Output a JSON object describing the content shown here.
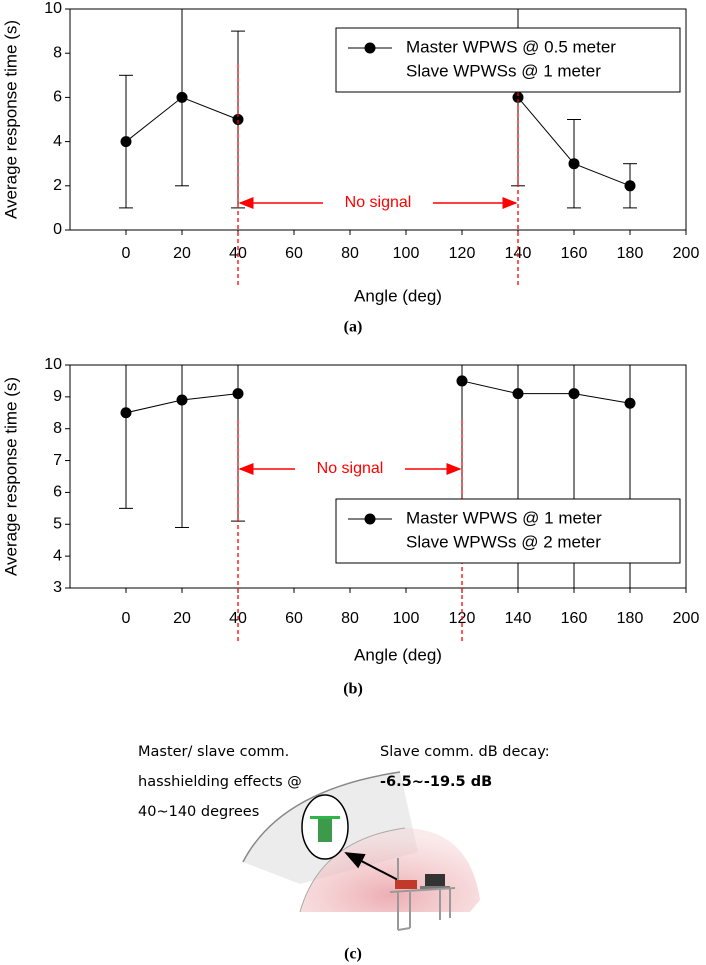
{
  "chart_data": [
    {
      "type": "line",
      "xlabel": "Angle (deg)",
      "ylabel": "Average response time (s)",
      "x": [
        0,
        20,
        40,
        60,
        80,
        100,
        120,
        140,
        160,
        180
      ],
      "series": [
        {
          "name": "Master WPWS @ 0.5 meter",
          "color": "#000000",
          "values": [
            4,
            6,
            5,
            null,
            null,
            null,
            null,
            6,
            3,
            2
          ],
          "errors": [
            3,
            4,
            4,
            null,
            null,
            null,
            null,
            4,
            2,
            1
          ]
        }
      ],
      "legend_text": "Slave WPWSs @  1 meter",
      "legend": "upper right",
      "xlim": [
        -20,
        200
      ],
      "xticks": [
        0,
        20,
        40,
        60,
        80,
        100,
        120,
        140,
        160,
        180,
        200
      ],
      "ylim": [
        0,
        10
      ],
      "yticks": [
        0,
        2,
        4,
        6,
        8,
        10
      ],
      "reference_lines": [
        40,
        140
      ],
      "reference_color": "#ff0000",
      "annotation": "No signal"
    },
    {
      "type": "line",
      "xlabel": "Angle (deg)",
      "ylabel": "Average response time (s)",
      "x": [
        0,
        20,
        40,
        60,
        80,
        100,
        120,
        140,
        160,
        180
      ],
      "series": [
        {
          "name": "Master WPWS @ 1 meter",
          "color": "#000000",
          "values": [
            8.5,
            8.9,
            9.1,
            null,
            null,
            null,
            9.5,
            9.1,
            9.1,
            8.8
          ],
          "errors": [
            3,
            4,
            4,
            null,
            null,
            null,
            4,
            6.5,
            6.5,
            6.5
          ]
        }
      ],
      "legend_text": "Slave WPWSs @  2 meter",
      "legend": "lower right",
      "xlim": [
        -20,
        200
      ],
      "xticks": [
        0,
        20,
        40,
        60,
        80,
        100,
        120,
        140,
        160,
        180,
        200
      ],
      "ylim": [
        3,
        10
      ],
      "yticks": [
        3,
        4,
        5,
        6,
        7,
        8,
        9,
        10
      ],
      "reference_lines": [
        40,
        120
      ],
      "reference_color": "#ff0000",
      "annotation": "No signal"
    }
  ],
  "panel_labels": [
    "(a)",
    "(b)",
    "(c)"
  ],
  "panel_c": {
    "left_text": [
      "Master/ slave comm.",
      "hasshielding effects @",
      "40~140 degrees"
    ],
    "right_title": "Slave comm. dB decay:",
    "right_value": "-6.5~-19.5 dB"
  }
}
